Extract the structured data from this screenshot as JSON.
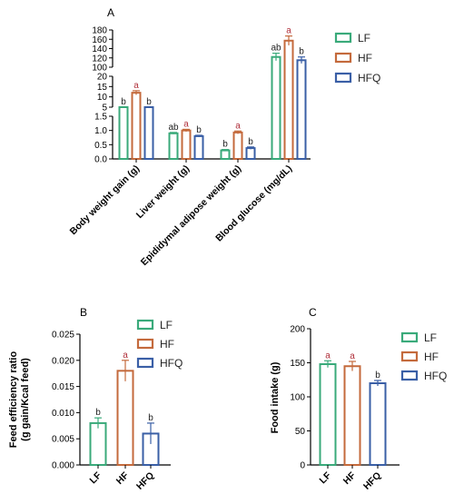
{
  "panels": {
    "a": "A",
    "b": "B",
    "c": "C"
  },
  "colors": {
    "LF": "#3aaa7a",
    "HF": "#c46a3c",
    "HFQ": "#3a5fa6",
    "sig": "#b0303b",
    "axis": "#000000"
  },
  "legend": [
    "LF",
    "HF",
    "HFQ"
  ],
  "chart_data": [
    {
      "panel": "A",
      "type": "bar",
      "title": "",
      "xlabel": "",
      "ylabel": "",
      "y_axis_breaks": "broken y-axis with segments [0-1.5], [5-20], [100-180]",
      "categories": [
        "Body weight gain (g)",
        "Liver weight (g)",
        "Epididymal adipose weight (g)",
        "Blood glucose (mg/dL)"
      ],
      "series": [
        {
          "name": "LF",
          "values": [
            4.5,
            0.9,
            0.3,
            122
          ],
          "errors": [
            0.6,
            0.03,
            0.03,
            8
          ],
          "labels": [
            "b",
            "ab",
            "b",
            "ab"
          ]
        },
        {
          "name": "HF",
          "values": [
            12,
            1.0,
            0.93,
            157
          ],
          "errors": [
            1.0,
            0.04,
            0.05,
            10
          ],
          "labels": [
            "a",
            "a",
            "a",
            "a"
          ]
        },
        {
          "name": "HFQ",
          "values": [
            3.8,
            0.8,
            0.38,
            115
          ],
          "errors": [
            0.5,
            0.03,
            0.04,
            7
          ],
          "labels": [
            "b",
            "b",
            "b",
            "b"
          ]
        }
      ],
      "yticks_bottom": [
        "0.0",
        "0.5",
        "1.0",
        "1.5"
      ],
      "yticks_middle": [
        "5",
        "10",
        "15",
        "20"
      ],
      "yticks_top": [
        "100",
        "120",
        "140",
        "160",
        "180"
      ]
    },
    {
      "panel": "B",
      "type": "bar",
      "title": "",
      "xlabel": "",
      "ylabel": "Feed efficiency ratio\n(g gain/Kcal feed)",
      "ylim": [
        0,
        0.025
      ],
      "yticks": [
        "0.000",
        "0.005",
        "0.010",
        "0.015",
        "0.020",
        "0.025"
      ],
      "categories": [
        "LF",
        "HF",
        "HFQ"
      ],
      "values": [
        0.008,
        0.018,
        0.006
      ],
      "errors": [
        0.001,
        0.002,
        0.002
      ],
      "labels": [
        "b",
        "a",
        "b"
      ]
    },
    {
      "panel": "C",
      "type": "bar",
      "title": "",
      "xlabel": "",
      "ylabel": "Food intake (g)",
      "ylim": [
        0,
        200
      ],
      "yticks": [
        "0",
        "50",
        "100",
        "150",
        "200"
      ],
      "categories": [
        "LF",
        "HF",
        "HFQ"
      ],
      "values": [
        148,
        145,
        120
      ],
      "errors": [
        5,
        7,
        4
      ],
      "labels": [
        "a",
        "a",
        "b"
      ]
    }
  ]
}
